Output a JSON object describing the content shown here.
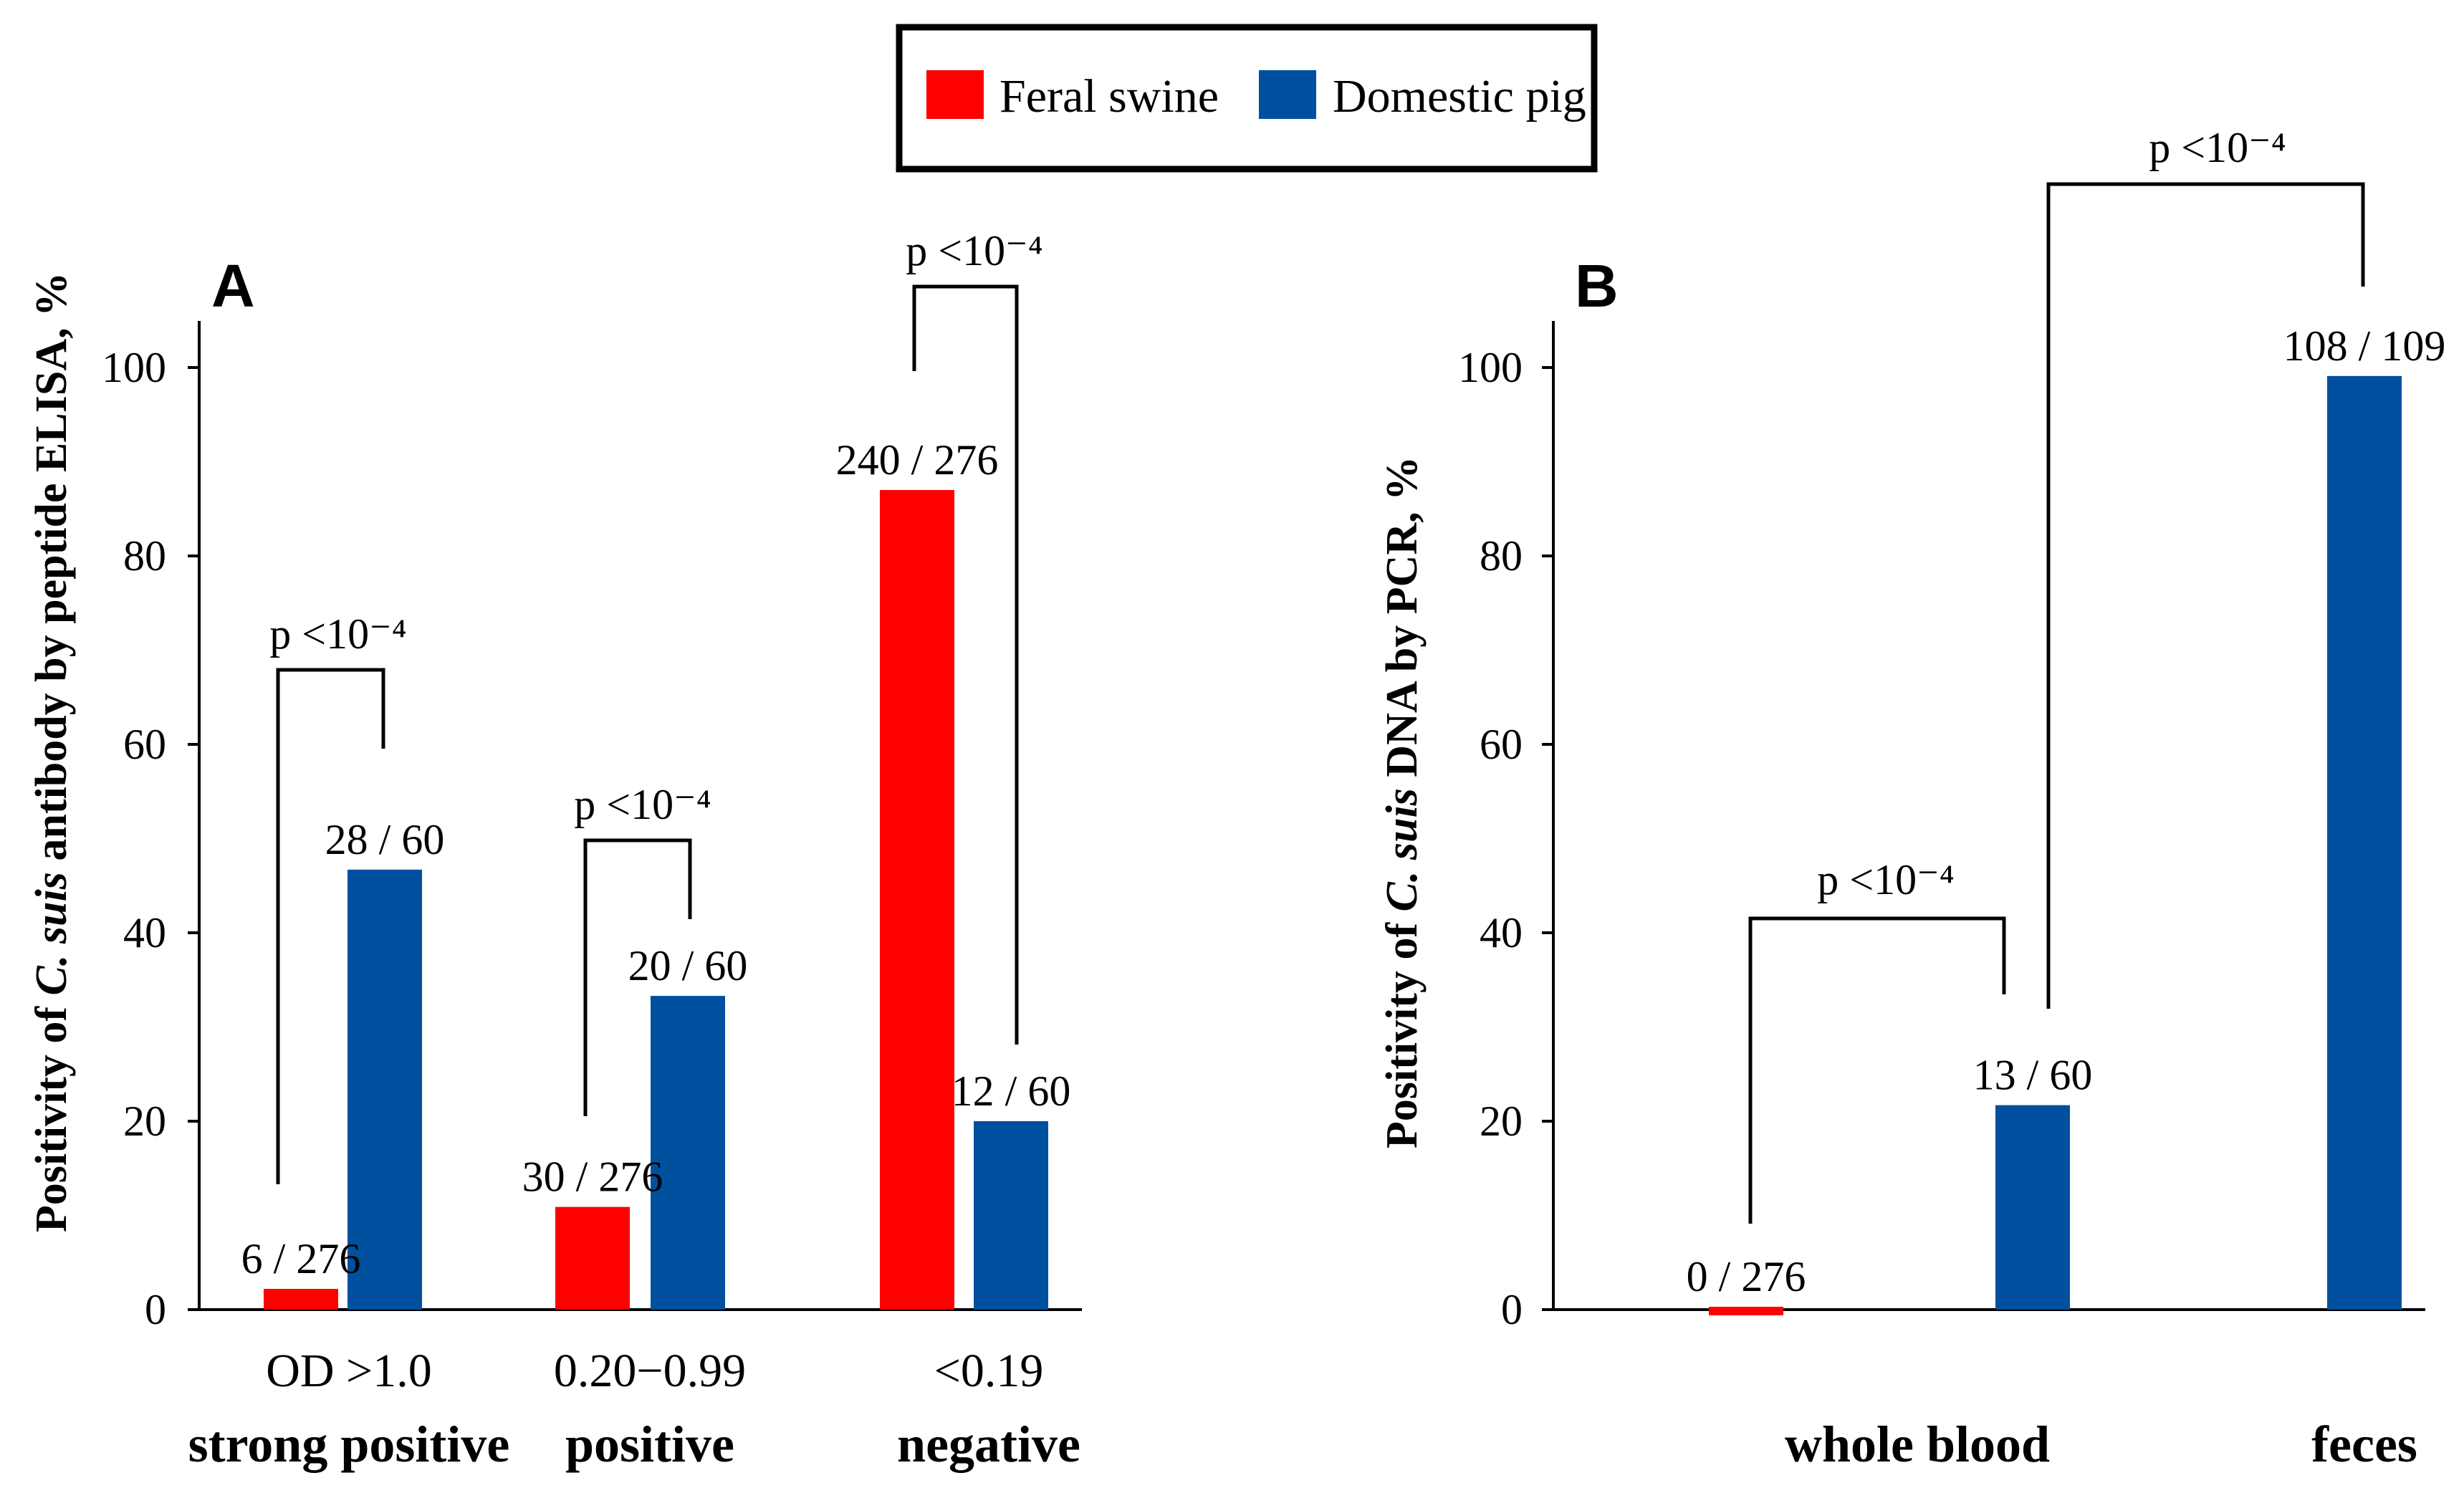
{
  "legend": {
    "items": [
      {
        "label": "Feral swine",
        "color": "#ff0000"
      },
      {
        "label": "Domestic pig",
        "color": "#0050a0"
      }
    ]
  },
  "chart_data": [
    {
      "panel_label": "A",
      "type": "bar",
      "ylabel": {
        "before": "Positivity of ",
        "italic": "C. suis",
        "after": " antibody by peptide ELISA, %"
      },
      "ylim": [
        0,
        100
      ],
      "yticks": [
        "0",
        "20",
        "40",
        "60",
        "80",
        "100"
      ],
      "categories": [
        {
          "line1": "OD >1.0",
          "line2": "strong positive"
        },
        {
          "line1": "0.20−0.99",
          "line2": "positive"
        },
        {
          "line1": "<0.19",
          "line2": "negative"
        }
      ],
      "series": [
        {
          "name": "Feral swine",
          "values": [
            2.2,
            10.9,
            87.0
          ],
          "labels": [
            "6 / 276",
            "30 / 276",
            "240 / 276"
          ]
        },
        {
          "name": "Domestic pig",
          "values": [
            46.7,
            33.3,
            20.0
          ],
          "labels": [
            "28 / 60",
            "20 / 60",
            "12 / 60"
          ]
        }
      ],
      "annotations": [
        {
          "text": "p <10⁻⁴",
          "between": "Feral swine vs Domestic pig",
          "category": 0
        },
        {
          "text": "p <10⁻⁴",
          "between": "Feral swine vs Domestic pig",
          "category": 1
        },
        {
          "text": "p <10⁻⁴",
          "between": "Feral swine vs Domestic pig",
          "category": 2
        }
      ]
    },
    {
      "panel_label": "B",
      "type": "bar",
      "ylabel": {
        "before": "Positivity of ",
        "italic": "C. suis",
        "after": " DNA by PCR, %"
      },
      "ylim": [
        0,
        100
      ],
      "yticks": [
        "0",
        "20",
        "40",
        "60",
        "80",
        "100"
      ],
      "categories": [
        {
          "line1": "",
          "line2": "whole blood"
        },
        {
          "line1": "",
          "line2": "feces"
        }
      ],
      "bars": [
        {
          "category": 0,
          "series": "Feral swine",
          "value": 0,
          "label": "0 / 276"
        },
        {
          "category": 0,
          "series": "Domestic pig",
          "value": 21.7,
          "label": "13 / 60"
        },
        {
          "category": 1,
          "series": "Domestic pig",
          "value": 99.1,
          "label": "108 / 109"
        }
      ],
      "annotations": [
        {
          "text": "p <10⁻⁴",
          "between": "whole blood: Feral swine vs Domestic pig"
        },
        {
          "text": "p <10⁻⁴",
          "between": "Domestic pig: whole blood vs feces"
        }
      ]
    }
  ]
}
